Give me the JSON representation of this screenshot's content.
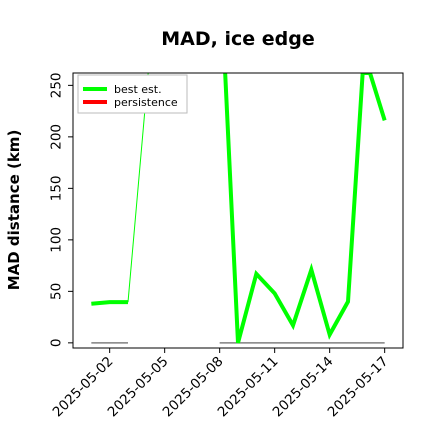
{
  "chart_data": {
    "type": "line",
    "title": "MAD, ice edge",
    "xlabel": "",
    "ylabel": "MAD distance (km)",
    "ylim": [
      -5,
      262
    ],
    "xlim": [
      "2025-05-00",
      "2025-05-18"
    ],
    "x_ticks": [
      "2025-05-02",
      "2025-05-05",
      "2025-05-08",
      "2025-05-11",
      "2025-05-14",
      "2025-05-17"
    ],
    "y_ticks": [
      0,
      50,
      100,
      150,
      200,
      250
    ],
    "grid": false,
    "legend_position": "top-left",
    "series": [
      {
        "name": "best est.",
        "color": "#00ff00",
        "segments": [
          {
            "points": [
              {
                "x": "2025-05-01",
                "y": 38
              },
              {
                "x": "2025-05-02",
                "y": 39.5
              },
              {
                "x": "2025-05-03",
                "y": 39.5
              }
            ]
          },
          {
            "points": [
              {
                "x": "2025-05-08.3",
                "y": 262
              },
              {
                "x": "2025-05-09",
                "y": 0
              },
              {
                "x": "2025-05-10",
                "y": 67
              },
              {
                "x": "2025-05-11",
                "y": 48
              },
              {
                "x": "2025-05-12",
                "y": 17
              },
              {
                "x": "2025-05-13",
                "y": 71
              },
              {
                "x": "2025-05-14",
                "y": 8
              },
              {
                "x": "2025-05-15",
                "y": 40
              },
              {
                "x": "2025-05-15.8",
                "y": 262
              },
              {
                "x": "2025-05-16.2",
                "y": 262
              },
              {
                "x": "2025-05-17",
                "y": 216
              }
            ]
          }
        ],
        "connector": [
          {
            "x": "2025-05-03",
            "y": 39.5
          },
          {
            "x": "2025-05-04.1",
            "y": 262
          }
        ]
      },
      {
        "name": "persistence",
        "color": "#ff0000",
        "segments": []
      }
    ],
    "baseline_segments": [
      {
        "x": [
          "2025-05-01",
          "2025-05-03"
        ],
        "y": 0,
        "color": "#808080"
      },
      {
        "x": [
          "2025-05-08",
          "2025-05-17"
        ],
        "y": 0,
        "color": "#808080"
      }
    ]
  }
}
